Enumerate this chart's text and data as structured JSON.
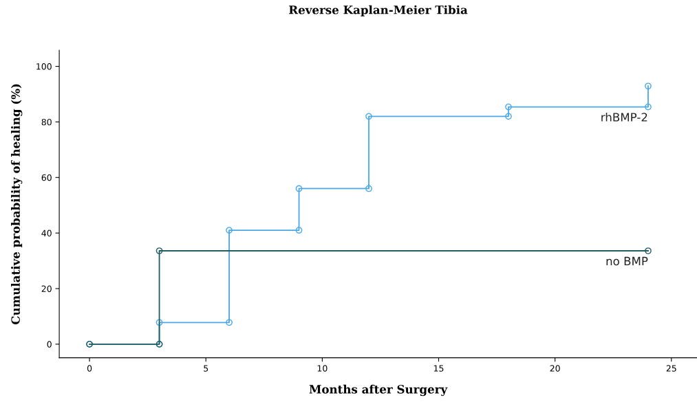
{
  "chart_data": {
    "type": "line",
    "title": "Reverse Kaplan-Meier Tibia",
    "xlabel": "Months after Surgery",
    "ylabel": "Cumulative probability of healing (%)",
    "series": [
      {
        "name": "rhBMP-2",
        "color": "#4aa8e8",
        "x": [
          0,
          3,
          3,
          6,
          6,
          9,
          9,
          12,
          12,
          18,
          18,
          24,
          24
        ],
        "values": [
          0,
          0,
          7.8,
          7.8,
          41,
          41,
          56,
          56,
          82,
          82,
          85.4,
          85.4,
          92.9
        ]
      },
      {
        "name": "no BMP",
        "color": "#1f5c63",
        "x": [
          0,
          3,
          3,
          24
        ],
        "values": [
          0,
          0,
          33.6,
          33.6
        ]
      }
    ],
    "xlim": [
      -1.3,
      26.1
    ],
    "ylim": [
      -4.9,
      105.8
    ],
    "xticks": [
      0,
      5,
      10,
      15,
      20,
      25
    ],
    "yticks": [
      0,
      20,
      40,
      60,
      80,
      100
    ],
    "marker": "circle",
    "line_style": "solid",
    "grid": false,
    "legend": false
  }
}
